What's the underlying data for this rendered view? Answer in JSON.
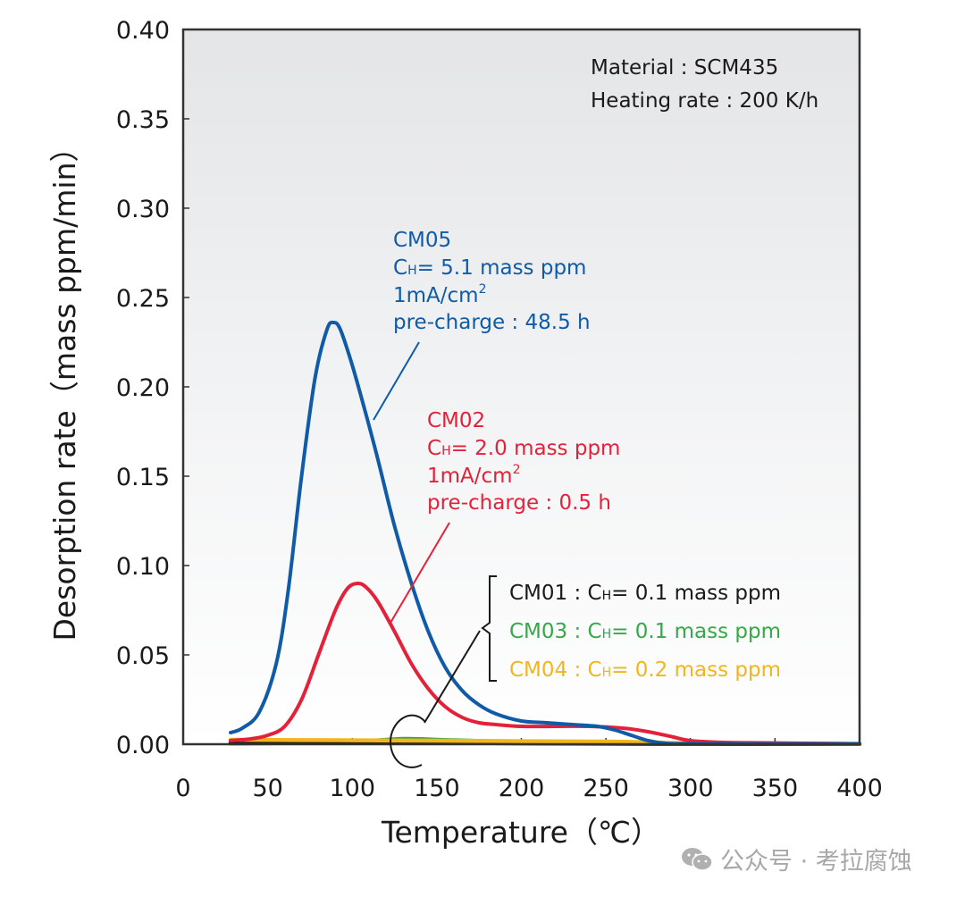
{
  "chart_data": {
    "type": "line",
    "title": "",
    "xlabel": "Temperature（℃）",
    "ylabel": "Desorption rate（mass ppm/min）",
    "xlim": [
      0,
      400
    ],
    "ylim": [
      0,
      0.4
    ],
    "xticks": [
      0,
      50,
      100,
      150,
      200,
      250,
      300,
      350,
      400
    ],
    "xtick_labels": [
      "0",
      "50",
      "100",
      "150",
      "200",
      "250",
      "300",
      "350",
      "400"
    ],
    "yticks": [
      0,
      0.05,
      0.1,
      0.15,
      0.2,
      0.25,
      0.3,
      0.35,
      0.4
    ],
    "ytick_labels": [
      "0.00",
      "0.05",
      "0.10",
      "0.15",
      "0.20",
      "0.25",
      "0.30",
      "0.35",
      "0.40"
    ],
    "grid": false,
    "background": "gradient light gray (top) to white (bottom)",
    "info_box": {
      "lines": [
        "Material : SCM435",
        "Heating rate : 200 K/h"
      ],
      "placement": "top-right"
    },
    "series": [
      {
        "name": "CM05",
        "color": "#0f5ba8",
        "x": [
          28,
          35,
          45,
          55,
          62,
          70,
          78,
          85,
          89,
          93,
          100,
          108,
          115,
          125,
          135,
          145,
          155,
          165,
          175,
          185,
          200,
          215,
          230,
          245,
          255,
          265,
          275,
          285,
          300,
          350,
          400
        ],
        "y": [
          0.0065,
          0.009,
          0.018,
          0.045,
          0.085,
          0.15,
          0.205,
          0.232,
          0.236,
          0.232,
          0.212,
          0.185,
          0.16,
          0.122,
          0.09,
          0.063,
          0.043,
          0.03,
          0.022,
          0.017,
          0.013,
          0.012,
          0.011,
          0.01,
          0.008,
          0.005,
          0.002,
          0.0005,
          0.0003,
          0.0002,
          0.0002
        ],
        "annotation": {
          "lines": [
            "CM05",
            "C_H= 5.1 mass ppm",
            "1mA/cm²",
            "pre-charge : 48.5 h"
          ]
        }
      },
      {
        "name": "CM02",
        "color": "#e5213a",
        "x": [
          28,
          40,
          50,
          60,
          70,
          80,
          90,
          97,
          103,
          108,
          115,
          125,
          135,
          145,
          155,
          165,
          175,
          185,
          200,
          220,
          240,
          260,
          275,
          290,
          300,
          320,
          350,
          400
        ],
        "y": [
          0.002,
          0.003,
          0.005,
          0.01,
          0.025,
          0.05,
          0.075,
          0.087,
          0.09,
          0.088,
          0.08,
          0.063,
          0.045,
          0.031,
          0.021,
          0.015,
          0.012,
          0.011,
          0.01,
          0.01,
          0.01,
          0.009,
          0.007,
          0.004,
          0.002,
          0.001,
          0.0007,
          0.0002
        ],
        "annotation": {
          "lines": [
            "CM02",
            "C_H= 2.0 mass ppm",
            "1mA/cm²",
            "pre-charge : 0.5 h"
          ]
        }
      },
      {
        "name": "CM01",
        "color": "#1a1a1a",
        "x": [
          28,
          100,
          150,
          200,
          250,
          300,
          400
        ],
        "y": [
          0.0005,
          0.0008,
          0.0008,
          0.0005,
          0.0003,
          0.0002,
          0.0001
        ],
        "label": "CM01 : C_H= 0.1 mass ppm"
      },
      {
        "name": "CM03",
        "color": "#35a849",
        "x": [
          28,
          100,
          130,
          150,
          200,
          250,
          300,
          400
        ],
        "y": [
          0.001,
          0.0015,
          0.003,
          0.0025,
          0.0012,
          0.0008,
          0.0004,
          0.0002
        ],
        "label": "CM03 : C_H= 0.1 mass ppm"
      },
      {
        "name": "CM04",
        "color": "#f2b51c",
        "x": [
          28,
          100,
          150,
          200,
          250,
          280,
          300,
          400
        ],
        "y": [
          0.0025,
          0.0022,
          0.002,
          0.0017,
          0.0015,
          0.001,
          0.0005,
          0.0002
        ],
        "label": "CM04 : C_H= 0.2 mass ppm"
      }
    ],
    "group_bracket_labels": [
      {
        "prefix": "CM01 : ",
        "sym": "C",
        "sub": "H",
        "rest": "= 0.1 mass ppm",
        "color": "#1a1a1a"
      },
      {
        "prefix": "CM03 : ",
        "sym": "C",
        "sub": "H",
        "rest": "= 0.1 mass ppm",
        "color": "#35a849"
      },
      {
        "prefix": "CM04 : ",
        "sym": "C",
        "sub": "H",
        "rest": "= 0.2 mass ppm",
        "color": "#f2b51c"
      }
    ]
  },
  "annotations": {
    "cm05": {
      "title": "CM05",
      "sym": "C",
      "sub": "H",
      "conc": "= 5.1 mass ppm",
      "current": "1mA/cm",
      "sup": "2",
      "precharge": "pre-charge : 48.5 h",
      "color": "#0f5ba8"
    },
    "cm02": {
      "title": "CM02",
      "sym": "C",
      "sub": "H",
      "conc": "= 2.0 mass ppm",
      "current": "1mA/cm",
      "sup": "2",
      "precharge": "pre-charge : 0.5 h",
      "color": "#e5213a"
    },
    "info": {
      "material": "Material : SCM435",
      "heating": "Heating rate : 200 K/h"
    }
  },
  "watermark": {
    "text": "公众号 · 考拉腐蚀",
    "icon": "wechat-icon"
  }
}
